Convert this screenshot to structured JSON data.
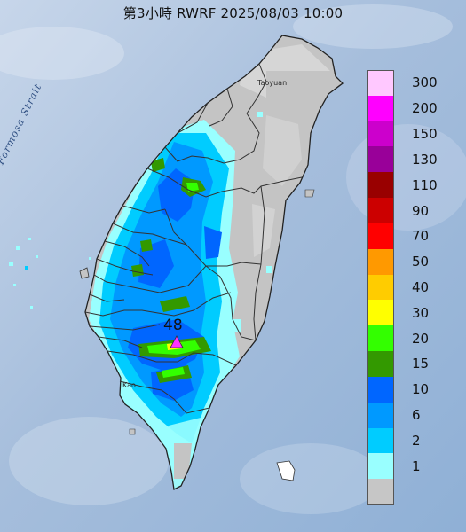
{
  "title": "第3小時  RWRF 2025/08/03 10:00",
  "map": {
    "strait_label": "Formosa Strait",
    "place_labels": [
      "Taoyuan",
      "Kao"
    ],
    "peak_value": "48",
    "peak_marker_color": "#ff33ff"
  },
  "legend": {
    "items": [
      {
        "label": "300",
        "color": "#ffc8ff"
      },
      {
        "label": "200",
        "color": "#ff00ff"
      },
      {
        "label": "150",
        "color": "#cc00cc"
      },
      {
        "label": "130",
        "color": "#990099"
      },
      {
        "label": "110",
        "color": "#990000"
      },
      {
        "label": "90",
        "color": "#cc0000"
      },
      {
        "label": "70",
        "color": "#ff0000"
      },
      {
        "label": "50",
        "color": "#ff9900"
      },
      {
        "label": "40",
        "color": "#ffcc00"
      },
      {
        "label": "30",
        "color": "#ffff00"
      },
      {
        "label": "20",
        "color": "#33ff00"
      },
      {
        "label": "15",
        "color": "#339900"
      },
      {
        "label": "10",
        "color": "#0066ff"
      },
      {
        "label": "6",
        "color": "#0099ff"
      },
      {
        "label": "2",
        "color": "#00ccff"
      },
      {
        "label": "1",
        "color": "#99ffff"
      },
      {
        "label": "",
        "color": "#c6c6c6"
      }
    ]
  },
  "colors": {
    "sea": "#a9c1de",
    "land": "#c4c4c4",
    "boundary": "#333333"
  }
}
